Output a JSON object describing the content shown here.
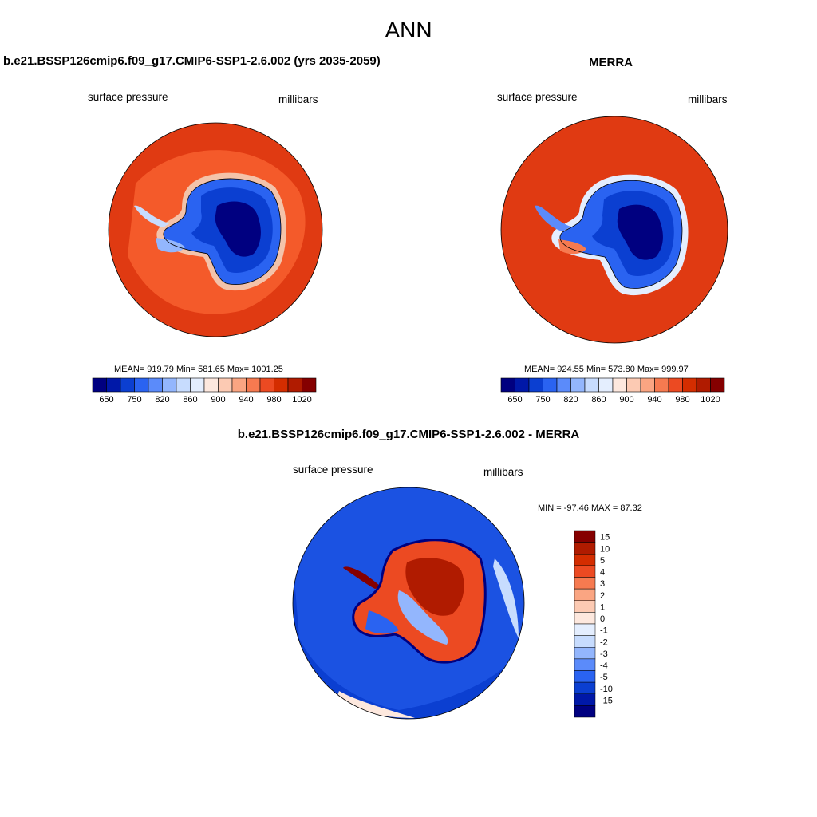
{
  "page": {
    "title": "ANN"
  },
  "panels": [
    {
      "title": "b.e21.BSSP126cmip6.f09_g17.CMIP6-SSP1-2.6.002 (yrs 2035-2059)",
      "variable": "surface pressure",
      "units": "millibars",
      "stats_text": "MEAN= 919.79  Min= 581.65  Max= 1001.25"
    },
    {
      "title": "MERRA",
      "variable": "surface pressure",
      "units": "millibars",
      "stats_text": "MEAN= 924.55  Min= 573.80  Max= 999.97"
    },
    {
      "title": "b.e21.BSSP126cmip6.f09_g17.CMIP6-SSP1-2.6.002 - MERRA",
      "variable": "surface pressure",
      "units": "millibars",
      "stats_text": "MIN = -97.46 MAX =  87.32"
    }
  ],
  "colors": {
    "abs_scale": [
      "#000080",
      "#0018a8",
      "#0b3fd1",
      "#2a63f1",
      "#5b8bfa",
      "#93b6fd",
      "#c7dcfe",
      "#e4eefe",
      "#fde8de",
      "#fccab3",
      "#faa582",
      "#f67a50",
      "#ec4a22",
      "#d42d00",
      "#b01b00",
      "#850000"
    ],
    "diff_scale": [
      "#000080",
      "#0018a8",
      "#0b3fd1",
      "#2a63f1",
      "#5b8bfa",
      "#93b6fd",
      "#c7dcfe",
      "#e4eefe",
      "#fde8de",
      "#fccab3",
      "#faa582",
      "#f67a50",
      "#ec4a22",
      "#d42d00",
      "#b01b00",
      "#850000"
    ]
  },
  "chart_data": [
    {
      "type": "heatmap",
      "title": "b.e21.BSSP126cmip6.f09_g17.CMIP6-SSP1-2.6.002 (yrs 2035-2059)",
      "variable": "surface pressure",
      "units": "millibars",
      "projection": "south polar stereographic",
      "mean": 919.79,
      "min": 581.65,
      "max": 1001.25,
      "colorbar": {
        "orientation": "horizontal",
        "levels": [
          650,
          700,
          750,
          780,
          820,
          840,
          860,
          880,
          900,
          920,
          940,
          960,
          980,
          1000,
          1020
        ],
        "tick_labels": [
          "650",
          "750",
          "820",
          "860",
          "900",
          "940",
          "980",
          "1020"
        ]
      }
    },
    {
      "type": "heatmap",
      "title": "MERRA",
      "variable": "surface pressure",
      "units": "millibars",
      "projection": "south polar stereographic",
      "mean": 924.55,
      "min": 573.8,
      "max": 999.97,
      "colorbar": {
        "orientation": "horizontal",
        "levels": [
          650,
          700,
          750,
          780,
          820,
          840,
          860,
          880,
          900,
          920,
          940,
          960,
          980,
          1000,
          1020
        ],
        "tick_labels": [
          "650",
          "750",
          "820",
          "860",
          "900",
          "940",
          "980",
          "1020"
        ]
      }
    },
    {
      "type": "heatmap",
      "title": "b.e21.BSSP126cmip6.f09_g17.CMIP6-SSP1-2.6.002 - MERRA",
      "variable": "surface pressure",
      "units": "millibars",
      "projection": "south polar stereographic",
      "min": -97.46,
      "max": 87.32,
      "colorbar": {
        "orientation": "vertical",
        "levels": [
          15,
          10,
          5,
          4,
          3,
          2,
          1,
          0,
          -1,
          -2,
          -3,
          -4,
          -5,
          -10,
          -15
        ],
        "tick_labels": [
          "15",
          "10",
          "5",
          "4",
          "3",
          "2",
          "1",
          "0",
          "-1",
          "-2",
          "-3",
          "-4",
          "-5",
          "-10",
          "-15"
        ]
      }
    }
  ]
}
